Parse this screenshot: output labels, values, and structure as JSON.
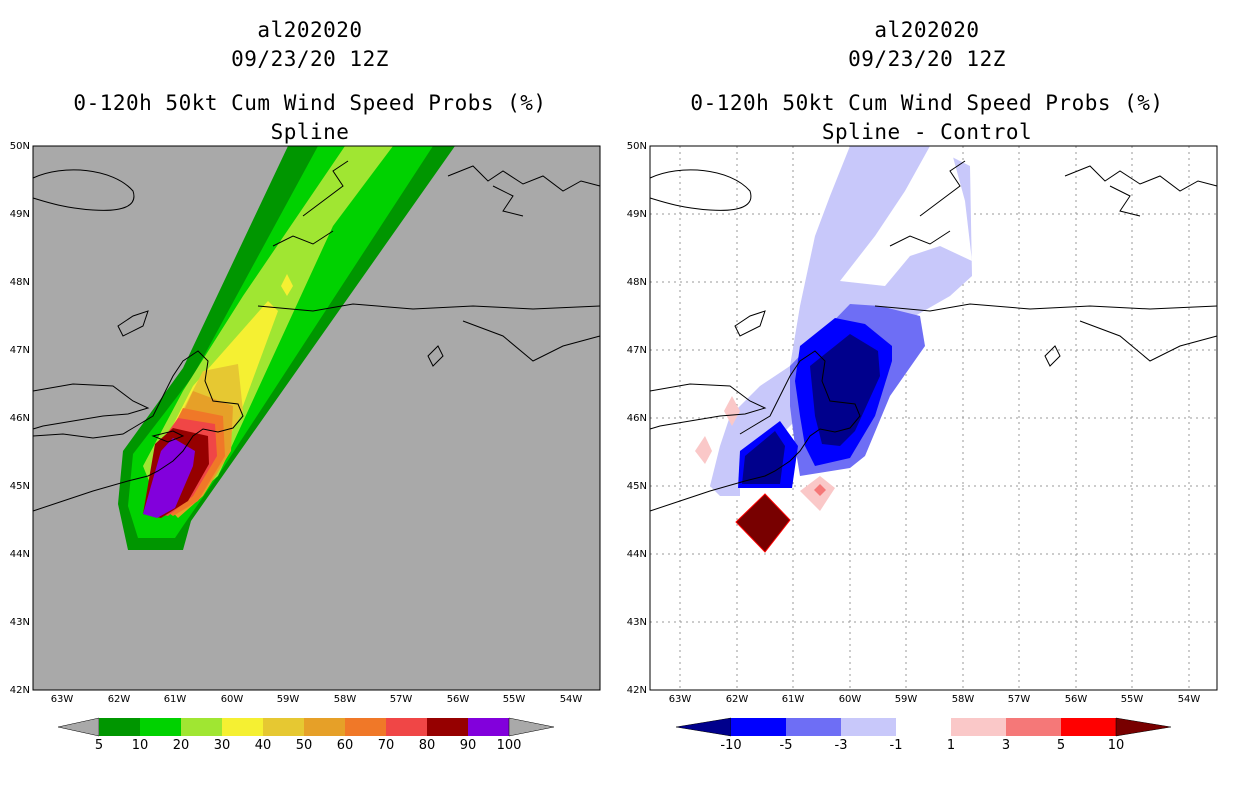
{
  "left_panel": {
    "storm_id": "al202020",
    "datetime": "09/23/20 12Z",
    "product": "0-120h 50kt Cum Wind Speed Probs (%)",
    "subtitle": "Spline",
    "background_color": "#a9a9a9"
  },
  "right_panel": {
    "storm_id": "al202020",
    "datetime": "09/23/20 12Z",
    "product": "0-120h 50kt Cum Wind Speed Probs (%)",
    "subtitle": "Spline - Control",
    "background_color": "#ffffff"
  },
  "axes": {
    "lat_labels": [
      "50N",
      "49N",
      "48N",
      "47N",
      "46N",
      "45N",
      "44N",
      "43N",
      "42N"
    ],
    "lon_labels": [
      "63W",
      "62W",
      "61W",
      "60W",
      "59W",
      "58W",
      "57W",
      "56W",
      "55W",
      "54W"
    ]
  },
  "left_colorbar": {
    "labels": [
      "5",
      "10",
      "20",
      "30",
      "40",
      "50",
      "60",
      "70",
      "80",
      "90",
      "100"
    ],
    "colors": [
      "#009600",
      "#00d200",
      "#a0e632",
      "#f5f032",
      "#e6c832",
      "#e6a028",
      "#f07828",
      "#f04646",
      "#960000",
      "#8200dc"
    ],
    "end_color": "#a9a9a9"
  },
  "right_colorbar": {
    "labels": [
      "-10",
      "-5",
      "-3",
      "-1",
      "1",
      "3",
      "5",
      "10"
    ],
    "colors": [
      "#0000ff",
      "#6e6ef5",
      "#c8c8fa",
      "#ffffff",
      "#fac8c8",
      "#f57878",
      "#ff0000"
    ],
    "low_end_color": "#00008c",
    "high_end_color": "#780000"
  },
  "prob_contours": {
    "colors": {
      "p5": "#009600",
      "p10": "#00d200",
      "p20": "#a0e632",
      "p30": "#f5f032",
      "p40": "#e6c832",
      "p50": "#e6a028",
      "p60": "#f07828",
      "p70": "#f04646",
      "p80": "#960000",
      "p90": "#8200dc"
    }
  },
  "diff_contours": {
    "colors": {
      "neg3": "#c8c8fa",
      "neg5": "#6e6ef5",
      "neg10": "#0000ff",
      "negmax": "#00008c",
      "pos1": "#fac8c8",
      "pos3": "#f57878",
      "posmax": "#780000"
    }
  }
}
